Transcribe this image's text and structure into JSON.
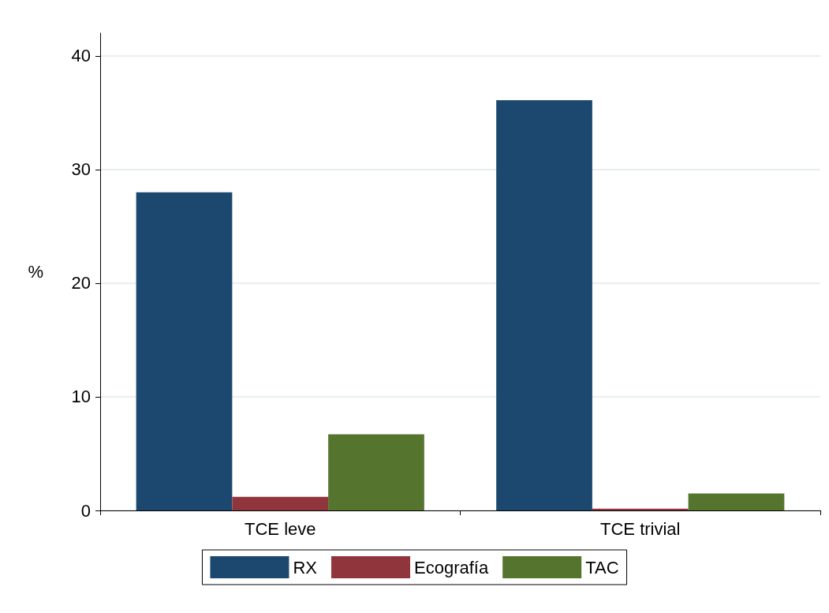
{
  "chart_data": {
    "type": "bar",
    "ylabel": "%",
    "categories": [
      "TCE leve",
      "TCE trivial"
    ],
    "series": [
      {
        "name": "RX",
        "color": "#1c4870",
        "values": [
          28,
          36.1
        ]
      },
      {
        "name": "Ecografía",
        "color": "#90353b",
        "values": [
          1.2,
          0.15
        ]
      },
      {
        "name": "TAC",
        "color": "#55752f",
        "values": [
          6.7,
          1.5
        ]
      }
    ],
    "ylim": [
      0,
      42
    ],
    "yticks": [
      0,
      10,
      20,
      30,
      40
    ],
    "grid": "y",
    "legend": "bottom"
  }
}
